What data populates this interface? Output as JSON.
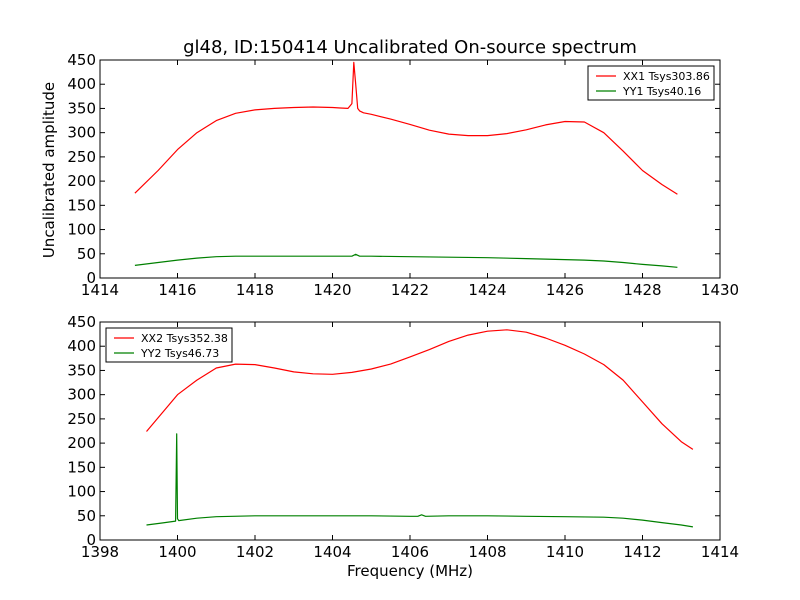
{
  "chart_data": [
    {
      "type": "line",
      "title": "gl48, ID:150414 Uncalibrated On-source spectrum",
      "xlabel": "",
      "ylabel": "Uncalibrated amplitude",
      "xlim": [
        1414,
        1430
      ],
      "ylim": [
        0,
        450
      ],
      "xticks": [
        1414,
        1416,
        1418,
        1420,
        1422,
        1424,
        1426,
        1428,
        1430
      ],
      "yticks": [
        0,
        50,
        100,
        150,
        200,
        250,
        300,
        350,
        400,
        450
      ],
      "legend_position": "top-right",
      "series": [
        {
          "name": "XX1 Tsys303.86",
          "color": "#ff0000",
          "x": [
            1414.9,
            1415.5,
            1416.0,
            1416.5,
            1417.0,
            1417.5,
            1418.0,
            1418.5,
            1419.0,
            1419.5,
            1420.0,
            1420.2,
            1420.4,
            1420.5,
            1420.55,
            1420.6,
            1420.65,
            1420.7,
            1420.8,
            1421.0,
            1421.5,
            1422.0,
            1422.5,
            1423.0,
            1423.5,
            1424.0,
            1424.5,
            1425.0,
            1425.5,
            1426.0,
            1426.5,
            1427.0,
            1427.5,
            1428.0,
            1428.5,
            1428.9
          ],
          "y": [
            175,
            222,
            265,
            300,
            325,
            340,
            347,
            350,
            352,
            353,
            352,
            351,
            350,
            360,
            445,
            400,
            350,
            345,
            341,
            338,
            328,
            317,
            305,
            297,
            294,
            294,
            298,
            306,
            316,
            323,
            322,
            300,
            262,
            222,
            193,
            173
          ]
        },
        {
          "name": "YY1 Tsys40.16",
          "color": "#008000",
          "x": [
            1414.9,
            1415.5,
            1416.0,
            1416.5,
            1417.0,
            1417.5,
            1418.0,
            1419.0,
            1420.0,
            1420.5,
            1420.6,
            1420.7,
            1421.0,
            1422.0,
            1423.0,
            1424.0,
            1425.0,
            1426.0,
            1426.5,
            1427.0,
            1427.5,
            1428.0,
            1428.5,
            1428.9
          ],
          "y": [
            26,
            32,
            37,
            41,
            44,
            45,
            45,
            45,
            45,
            45,
            49,
            45,
            45,
            44,
            43,
            42,
            40,
            38,
            37,
            35,
            32,
            28,
            25,
            22
          ]
        }
      ]
    },
    {
      "type": "line",
      "title": "",
      "xlabel": "Frequency (MHz)",
      "ylabel": "",
      "xlim": [
        1398,
        1414
      ],
      "ylim": [
        0,
        450
      ],
      "xticks": [
        1398,
        1400,
        1402,
        1404,
        1406,
        1408,
        1410,
        1412,
        1414
      ],
      "yticks": [
        0,
        50,
        100,
        150,
        200,
        250,
        300,
        350,
        400,
        450
      ],
      "legend_position": "top-left",
      "series": [
        {
          "name": "XX2 Tsys352.38",
          "color": "#ff0000",
          "x": [
            1399.2,
            1399.6,
            1400.0,
            1400.5,
            1401.0,
            1401.5,
            1402.0,
            1402.5,
            1403.0,
            1403.5,
            1404.0,
            1404.5,
            1405.0,
            1405.5,
            1406.0,
            1406.5,
            1407.0,
            1407.5,
            1408.0,
            1408.5,
            1409.0,
            1409.5,
            1410.0,
            1410.5,
            1411.0,
            1411.5,
            1412.0,
            1412.5,
            1413.0,
            1413.3
          ],
          "y": [
            224,
            262,
            300,
            330,
            355,
            363,
            362,
            355,
            347,
            343,
            342,
            346,
            353,
            363,
            378,
            393,
            410,
            423,
            431,
            434,
            429,
            417,
            402,
            384,
            362,
            330,
            285,
            240,
            203,
            187
          ]
        },
        {
          "name": "YY2 Tsys46.73",
          "color": "#008000",
          "x": [
            1399.2,
            1399.6,
            1399.95,
            1399.98,
            1400.0,
            1400.03,
            1400.5,
            1401.0,
            1402.0,
            1403.0,
            1404.0,
            1405.0,
            1406.0,
            1406.2,
            1406.3,
            1406.4,
            1407.0,
            1408.0,
            1409.0,
            1410.0,
            1411.0,
            1411.5,
            1412.0,
            1412.5,
            1413.0,
            1413.3
          ],
          "y": [
            31,
            35,
            39,
            219,
            44,
            40,
            45,
            48,
            50,
            50,
            50,
            50,
            49,
            49,
            52,
            49,
            50,
            50,
            49,
            48,
            47,
            45,
            41,
            36,
            31,
            27
          ]
        }
      ]
    }
  ]
}
